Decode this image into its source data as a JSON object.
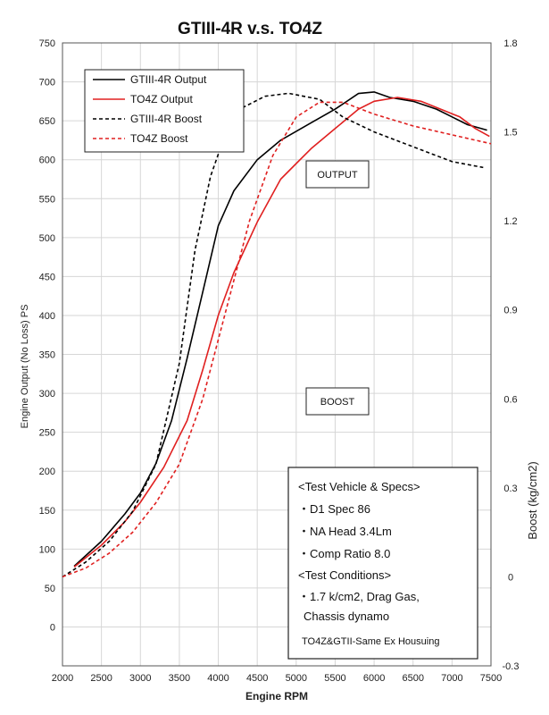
{
  "chart_data": {
    "type": "line",
    "title": "GTIII-4R v.s. TO4Z",
    "xlabel": "Engine RPM",
    "ylabel": "Engine Output (No Loss) PS",
    "y2label": "Boost (kg/cm2)",
    "xlim": [
      2000,
      7500
    ],
    "ylim": [
      -50,
      750
    ],
    "y2lim": [
      -0.3,
      1.8
    ],
    "x_ticks": [
      2000,
      2500,
      3000,
      3500,
      4000,
      4500,
      5000,
      5500,
      6000,
      6500,
      7000,
      7500
    ],
    "y_ticks": [
      0,
      50,
      100,
      150,
      200,
      250,
      300,
      350,
      400,
      450,
      500,
      550,
      600,
      650,
      700,
      750
    ],
    "y2_ticks": [
      -0.3,
      0,
      0.3,
      0.6,
      0.9,
      1.2,
      1.5,
      1.8
    ],
    "grid": true,
    "legend_position": "top-left",
    "series": [
      {
        "name": "GTIII-4R Output",
        "axis": "left",
        "color": "#000000",
        "style": "solid",
        "x": [
          2150,
          2500,
          2800,
          3000,
          3200,
          3400,
          3600,
          3800,
          4000,
          4200,
          4500,
          4800,
          5200,
          5500,
          5800,
          6000,
          6200,
          6500,
          6800,
          7000,
          7200,
          7450
        ],
        "y": [
          78,
          110,
          145,
          172,
          210,
          265,
          345,
          430,
          515,
          560,
          600,
          625,
          648,
          665,
          685,
          687,
          680,
          675,
          665,
          655,
          645,
          638
        ]
      },
      {
        "name": "TO4Z Output",
        "axis": "left",
        "color": "#e02020",
        "style": "solid",
        "x": [
          2150,
          2500,
          2800,
          3000,
          3300,
          3600,
          3800,
          4000,
          4200,
          4500,
          4800,
          5000,
          5200,
          5500,
          5800,
          6000,
          6300,
          6600,
          6900,
          7100,
          7300,
          7480
        ],
        "y": [
          77,
          105,
          135,
          160,
          205,
          265,
          330,
          400,
          455,
          520,
          575,
          595,
          615,
          640,
          665,
          675,
          680,
          675,
          663,
          655,
          640,
          630
        ]
      },
      {
        "name": "GTIII-4R Boost",
        "axis": "right",
        "color": "#000000",
        "style": "dashed",
        "x": [
          2000,
          2300,
          2600,
          2900,
          3200,
          3500,
          3700,
          3900,
          4100,
          4300,
          4600,
          4900,
          5300,
          5600,
          6000,
          6500,
          7000,
          7400
        ],
        "y": [
          0.0,
          0.05,
          0.12,
          0.22,
          0.38,
          0.72,
          1.1,
          1.35,
          1.5,
          1.58,
          1.62,
          1.63,
          1.61,
          1.55,
          1.5,
          1.45,
          1.4,
          1.38
        ]
      },
      {
        "name": "TO4Z Boost",
        "axis": "right",
        "color": "#e02020",
        "style": "dashed",
        "x": [
          2000,
          2300,
          2600,
          2900,
          3200,
          3500,
          3800,
          4100,
          4400,
          4700,
          5000,
          5300,
          5600,
          6000,
          6500,
          7000,
          7500
        ],
        "y": [
          0.0,
          0.03,
          0.08,
          0.15,
          0.25,
          0.38,
          0.6,
          0.9,
          1.2,
          1.42,
          1.55,
          1.6,
          1.6,
          1.56,
          1.52,
          1.49,
          1.46
        ]
      }
    ],
    "annotations": [
      "OUTPUT",
      "BOOST"
    ],
    "spec_box": {
      "lines": [
        "<Test Vehicle & Specs>",
        "・D1 Spec 86",
        "・NA Head 3.4Lm",
        "・Comp Ratio 8.0",
        "<Test Conditions>",
        "・1.7 k/cm2, Drag Gas,",
        "Chassis dynamo"
      ],
      "footer": "TO4Z&GTII-Same Ex Housuing"
    }
  }
}
